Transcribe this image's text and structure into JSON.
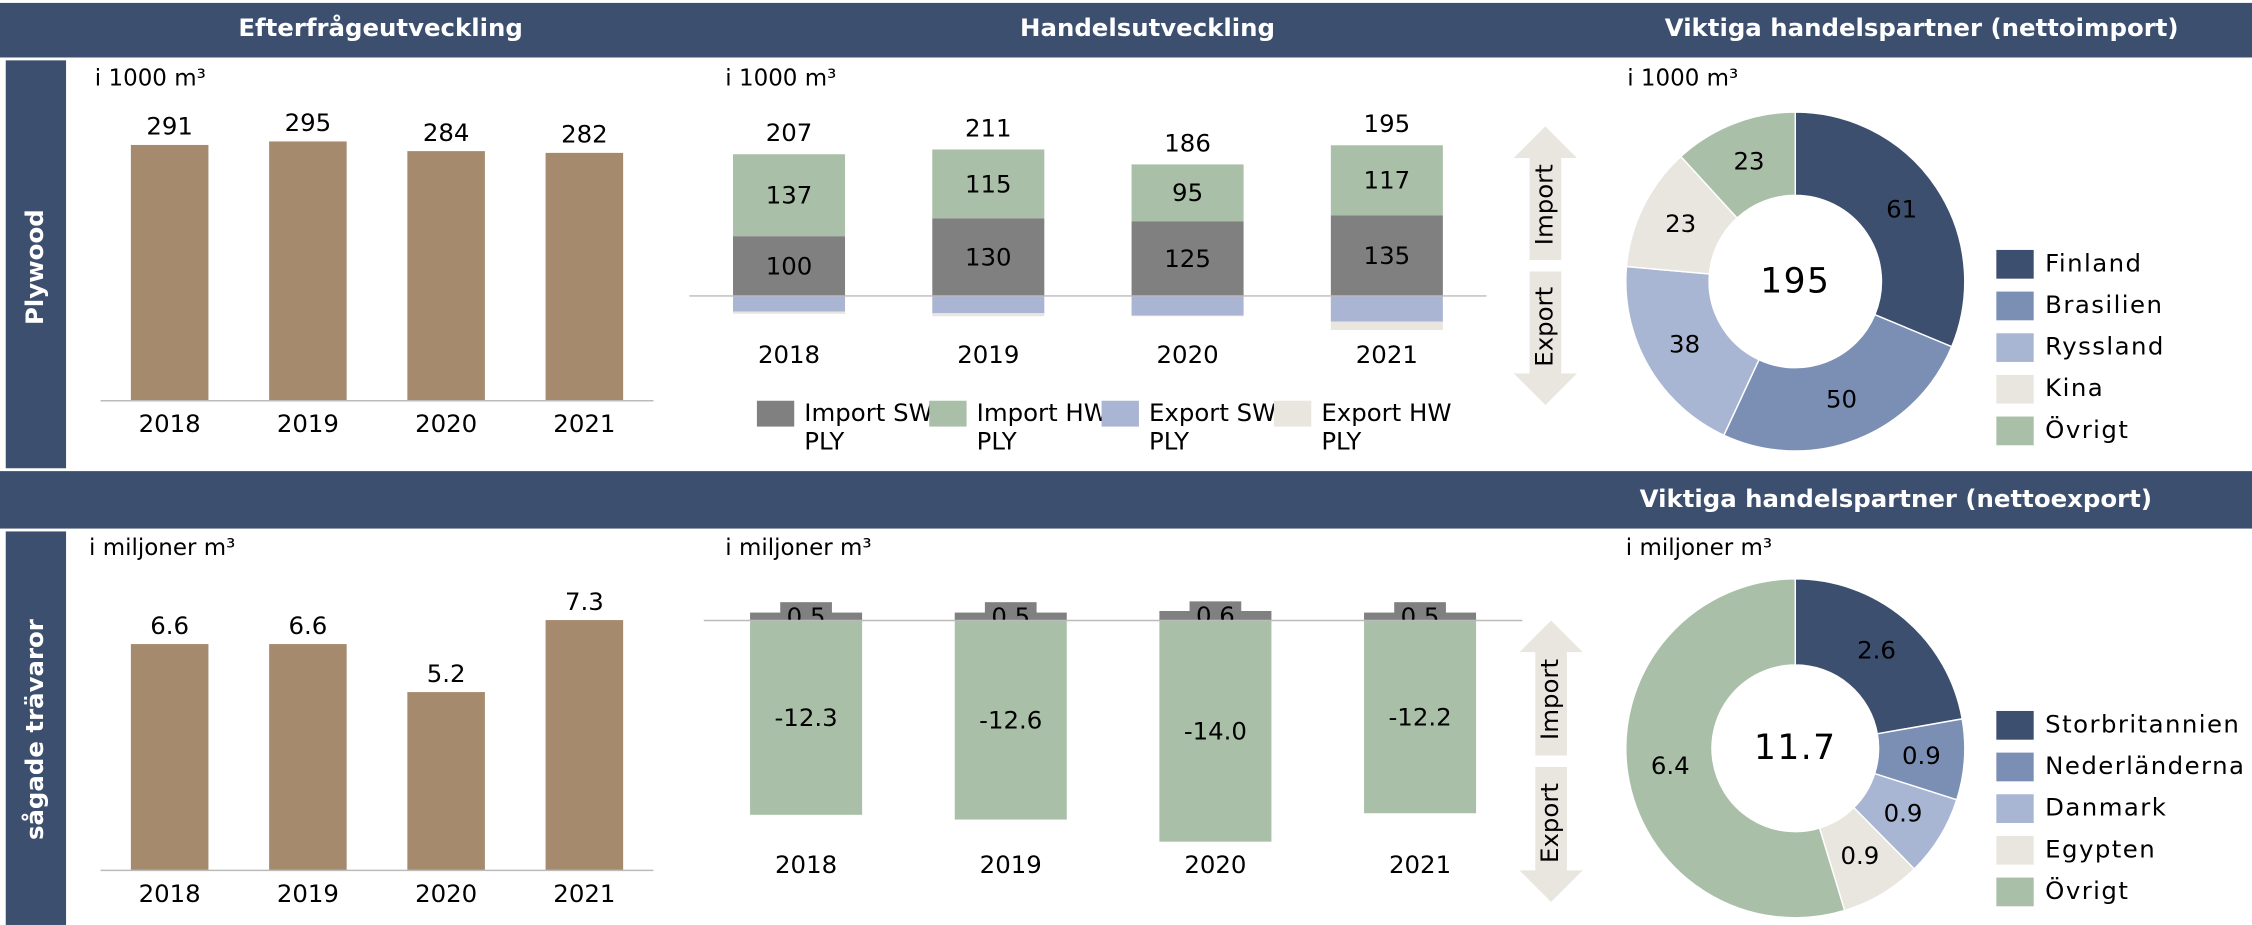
{
  "headers": {
    "top": [
      "Efterfrågeutveckling",
      "Handelsutveckling",
      "Viktiga handelspartner (nettoimport)"
    ],
    "middle": "Viktiga handelspartner (nettoexport)"
  },
  "rows": [
    "Plywood",
    "sågade trävaror"
  ],
  "chart_data": [
    {
      "type": "bar",
      "subtitle": "i 1000 m³",
      "categories": [
        "2018",
        "2019",
        "2020",
        "2021"
      ],
      "values": [
        291,
        295,
        284,
        282
      ],
      "color": "#a68a6d",
      "ylim": [
        0,
        300
      ]
    },
    {
      "type": "stacked_bar",
      "subtitle": "i 1000 m³",
      "categories": [
        "2018",
        "2019",
        "2020",
        "2021"
      ],
      "series": [
        {
          "name": "Import SW PLY",
          "color": "#808080",
          "values": [
            100,
            130,
            125,
            135
          ],
          "data_labels": true
        },
        {
          "name": "Import HW PLY",
          "color": "#a9bfa8",
          "values": [
            137,
            115,
            95,
            117
          ],
          "data_labels": true
        },
        {
          "name": "Export SW PLY",
          "color": "#aab5d4",
          "values": [
            -26,
            -29,
            -33,
            -43
          ]
        },
        {
          "name": "Export HW PLY",
          "color": "#e8e6df",
          "values": [
            -4,
            -5,
            -1,
            -14
          ]
        }
      ],
      "totals": [
        207,
        211,
        186,
        195
      ],
      "arrow_labels": [
        "Import",
        "Export"
      ],
      "ylim": [
        -60,
        260
      ],
      "legend": true
    },
    {
      "type": "donut",
      "subtitle": "i 1000 m³",
      "categories": [
        "Finland",
        "Brasilien",
        "Ryssland",
        "Kina",
        "Övrigt"
      ],
      "values": [
        61,
        50,
        38,
        23,
        23
      ],
      "colors": [
        "#3d4f6f",
        "#7b8fb5",
        "#a9b6d3",
        "#e8e6df",
        "#a9bfa8"
      ],
      "total": 195
    },
    {
      "type": "bar",
      "subtitle": "i miljoner m³",
      "categories": [
        "2018",
        "2019",
        "2020",
        "2021"
      ],
      "values": [
        6.6,
        6.6,
        5.2,
        7.3
      ],
      "color": "#a68a6d",
      "ylim": [
        0,
        8
      ]
    },
    {
      "type": "stacked_bar",
      "subtitle": "i miljoner m³",
      "categories": [
        "2018",
        "2019",
        "2020",
        "2021"
      ],
      "series": [
        {
          "color": "#808080",
          "values": [
            0.5,
            0.5,
            0.6,
            0.5
          ],
          "data_labels": true
        },
        {
          "color": "#a9bfa8",
          "values": [
            -12.3,
            -12.6,
            -14.0,
            -12.2
          ],
          "value_labels": [
            "-12.3",
            "-12.6",
            "-14.0",
            "-12.2"
          ],
          "data_labels": true
        }
      ],
      "arrow_labels": [
        "Import",
        "Export"
      ],
      "ylim": [
        -15,
        1
      ]
    },
    {
      "type": "donut",
      "subtitle": "i miljoner m³",
      "categories": [
        "Storbritannien",
        "Nederländerna",
        "Danmark",
        "Egypten",
        "Övrigt"
      ],
      "values": [
        2.6,
        0.9,
        0.9,
        0.9,
        6.4
      ],
      "colors": [
        "#3d4f6f",
        "#7b8fb5",
        "#a9b6d3",
        "#e8e6df",
        "#a9bfa8"
      ],
      "total": 11.7
    }
  ]
}
